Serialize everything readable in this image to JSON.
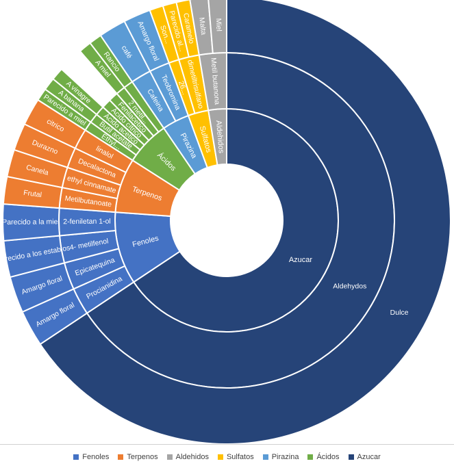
{
  "chart_data": {
    "type": "sunburst",
    "colors": {
      "Fenoles": "#4472C4",
      "Terpenos": "#ED7D31",
      "Aldehidos": "#A5A5A5",
      "Sulfatos": "#FFC000",
      "Pirazina": "#5B9BD5",
      "Ácidos": "#70AD47",
      "Azucar": "#264478"
    },
    "legend": [
      "Fenoles",
      "Terpenos",
      "Aldehidos",
      "Sulfatos",
      "Pirazina",
      "Ácidos",
      "Azucar"
    ],
    "legend_position": "bottom",
    "nodes": [
      {
        "name": "Azucar",
        "color": "#264478",
        "children": [
          {
            "name": "Aldehydos",
            "children": [
              {
                "name": "Dulce",
                "value": 50
              }
            ]
          }
        ]
      },
      {
        "name": "Fenoles",
        "color": "#4472C4",
        "children": [
          {
            "name": "Procianidina",
            "children": [
              {
                "name": "Amargo floral",
                "value": 2
              }
            ]
          },
          {
            "name": "Epicatequina",
            "children": [
              {
                "name": "Amargo floral",
                "value": 2
              }
            ]
          },
          {
            "name": "4- metilfenol",
            "children": [
              {
                "name": "parecido a los establos",
                "value": 2
              }
            ]
          },
          {
            "name": "2-feniletan 1-ol",
            "children": [
              {
                "name": "Parecido a la miel",
                "value": 2
              }
            ]
          }
        ]
      },
      {
        "name": "Terpenos",
        "color": "#ED7D31",
        "children": [
          {
            "name": "Metilbutanoate",
            "children": [
              {
                "name": "Frutal",
                "value": 1.5
              }
            ]
          },
          {
            "name": "ethyl cinnamate",
            "children": [
              {
                "name": "Canela",
                "value": 1.5
              }
            ]
          },
          {
            "name": "Decalactona",
            "children": [
              {
                "name": "Durazno",
                "value": 1.5
              }
            ]
          },
          {
            "name": "linalol",
            "children": [
              {
                "name": "citrico",
                "value": 1.5
              }
            ]
          }
        ]
      },
      {
        "name": "Ácidos",
        "color": "#70AD47",
        "children": [
          {
            "name": "Ethyl...",
            "children": [
              {
                "name": "Parecido a miel",
                "value": 0.7
              }
            ]
          },
          {
            "name": "Butil acetate",
            "children": [
              {
                "name": "A banana",
                "value": 0.7
              }
            ]
          },
          {
            "name": "Ácido acetico",
            "children": [
              {
                "name": "A vinagre",
                "value": 0.7
              }
            ]
          },
          {
            "name": "Ácido cítrico",
            "value": 0.7
          },
          {
            "name": "Fenilacetico",
            "value": 0.7
          },
          {
            "name": "2 metil...",
            "children": [
              {
                "name": "A miel",
                "value": 0.7
              }
            ]
          },
          {
            "name": "",
            "children": [
              {
                "name": "Rancio",
                "value": 0.7
              }
            ]
          }
        ]
      },
      {
        "name": "Pirazina",
        "color": "#5B9BD5",
        "children": [
          {
            "name": "Cafeina",
            "children": [
              {
                "name": "café",
                "value": 1.5
              }
            ]
          },
          {
            "name": "Teobromina",
            "children": [
              {
                "name": "Amargo floral",
                "value": 1.5
              }
            ]
          }
        ]
      },
      {
        "name": "Sulfatos",
        "color": "#FFC000",
        "children": [
          {
            "name": "26...",
            "children": [
              {
                "name": "Son...",
                "value": 0.75
              }
            ]
          },
          {
            "name": "dimetiltrisulfano",
            "children": [
              {
                "name": "Parecido al...",
                "value": 0.75
              },
              {
                "name": "Caramelo",
                "value": 0.75
              }
            ]
          }
        ]
      },
      {
        "name": "Aldehidos",
        "color": "#A5A5A5",
        "children": [
          {
            "name": "Metil butanona",
            "children": [
              {
                "name": "Malta",
                "value": 1
              },
              {
                "name": "Miel",
                "value": 1
              }
            ]
          }
        ]
      }
    ]
  }
}
